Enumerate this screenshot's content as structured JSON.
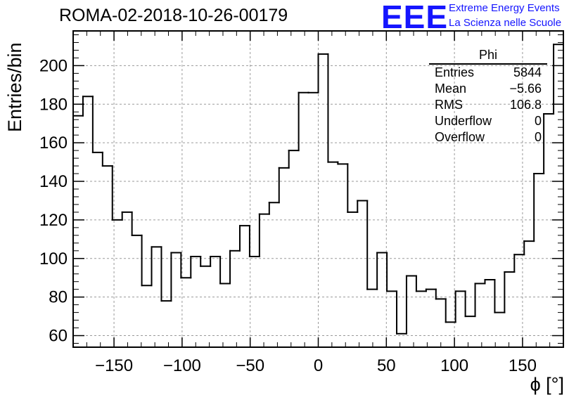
{
  "header": {
    "run_title": "ROMA-02-2018-10-26-00179"
  },
  "logo": {
    "mark": "EEE",
    "line1": "Extreme Energy Events",
    "line2": "La Scienza nelle Scuole",
    "color": "#1515ff"
  },
  "stats": {
    "name": "Phi",
    "rows": [
      {
        "key": "Entries",
        "value": "5844"
      },
      {
        "key": "Mean",
        "value": "−5.66"
      },
      {
        "key": "RMS",
        "value": "106.8"
      },
      {
        "key": "Underflow",
        "value": "0"
      },
      {
        "key": "Overflow",
        "value": "0"
      }
    ]
  },
  "chart_data": {
    "type": "histogram",
    "xlabel": "ϕ [°]",
    "ylabel": "Entries/bin",
    "xlim": [
      -180,
      180
    ],
    "ylim": [
      54,
      218
    ],
    "bin_width": 7.2,
    "x_ticks": [
      -150,
      -100,
      -50,
      0,
      50,
      100,
      150
    ],
    "y_ticks": [
      60,
      80,
      100,
      120,
      140,
      160,
      180,
      200
    ],
    "grid": true,
    "line_color": "#000000",
    "bins_left_edges": [
      -180,
      -172.8,
      -165.6,
      -158.4,
      -151.2,
      -144,
      -136.8,
      -129.6,
      -122.4,
      -115.2,
      -108,
      -100.8,
      -93.6,
      -86.4,
      -79.2,
      -72,
      -64.8,
      -57.6,
      -50.4,
      -43.2,
      -36,
      -28.8,
      -21.6,
      -14.4,
      -7.2,
      0,
      7.2,
      14.4,
      21.6,
      28.8,
      36,
      43.2,
      50.4,
      57.6,
      64.8,
      72,
      79.2,
      86.4,
      93.6,
      100.8,
      108,
      115.2,
      122.4,
      129.6,
      136.8,
      144,
      151.2,
      158.4,
      165.6,
      172.8
    ],
    "counts": [
      174,
      184,
      155,
      148,
      120,
      124,
      112,
      86,
      106,
      78,
      103,
      90,
      101,
      96,
      101,
      87,
      104,
      117,
      101,
      123,
      129,
      147,
      156,
      186,
      186,
      206,
      150,
      149,
      124,
      130,
      84,
      103,
      83,
      61,
      91,
      83,
      84,
      79,
      67,
      83,
      70,
      87,
      89,
      72,
      93,
      102,
      109,
      144,
      175,
      211
    ]
  }
}
